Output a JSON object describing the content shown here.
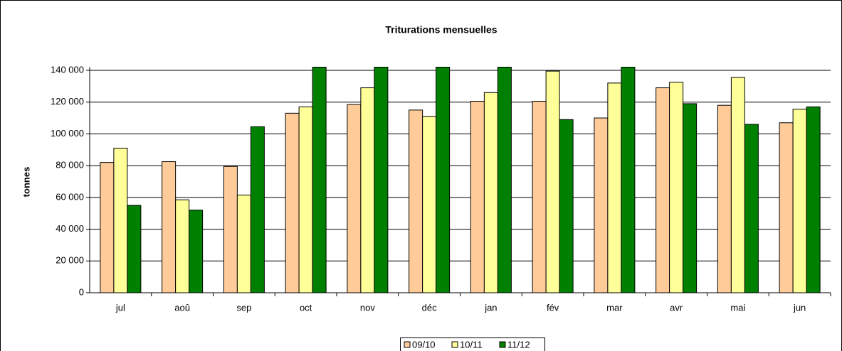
{
  "chart_data": {
    "type": "bar",
    "title": "Triturations mensuelles",
    "y_label": "tonnes",
    "categories": [
      "jul",
      "aoû",
      "sep",
      "oct",
      "nov",
      "déc",
      "jan",
      "fév",
      "mar",
      "avr",
      "mai",
      "jun"
    ],
    "series": [
      {
        "name": "09/10",
        "color": "#ffcc99",
        "values": [
          82000,
          82500,
          79500,
          113000,
          118500,
          115000,
          120500,
          120500,
          110000,
          129000,
          118000,
          107000
        ]
      },
      {
        "name": "10/11",
        "color": "#ffff99",
        "values": [
          91000,
          58500,
          61500,
          117000,
          129000,
          111000,
          126000,
          139500,
          132000,
          132500,
          135500,
          115500
        ]
      },
      {
        "name": "11/12",
        "color": "#008000",
        "values": [
          55000,
          52000,
          104500,
          142000,
          142000,
          142000,
          142000,
          109000,
          142000,
          119000,
          106000,
          117000
        ]
      }
    ],
    "ylim": [
      0,
      142000
    ],
    "yticks": [
      0,
      {
        "value": 20000,
        "label": "20 000"
      },
      {
        "value": 40000,
        "label": "40 000"
      },
      {
        "value": 60000,
        "label": "60 000"
      },
      {
        "value": 80000,
        "label": "80 000"
      },
      {
        "value": 100000,
        "label": "100 000"
      },
      {
        "value": 120000,
        "label": "120 000"
      },
      {
        "value": 140000,
        "label": "140 000"
      }
    ],
    "grid": true,
    "legend": "bottom"
  }
}
